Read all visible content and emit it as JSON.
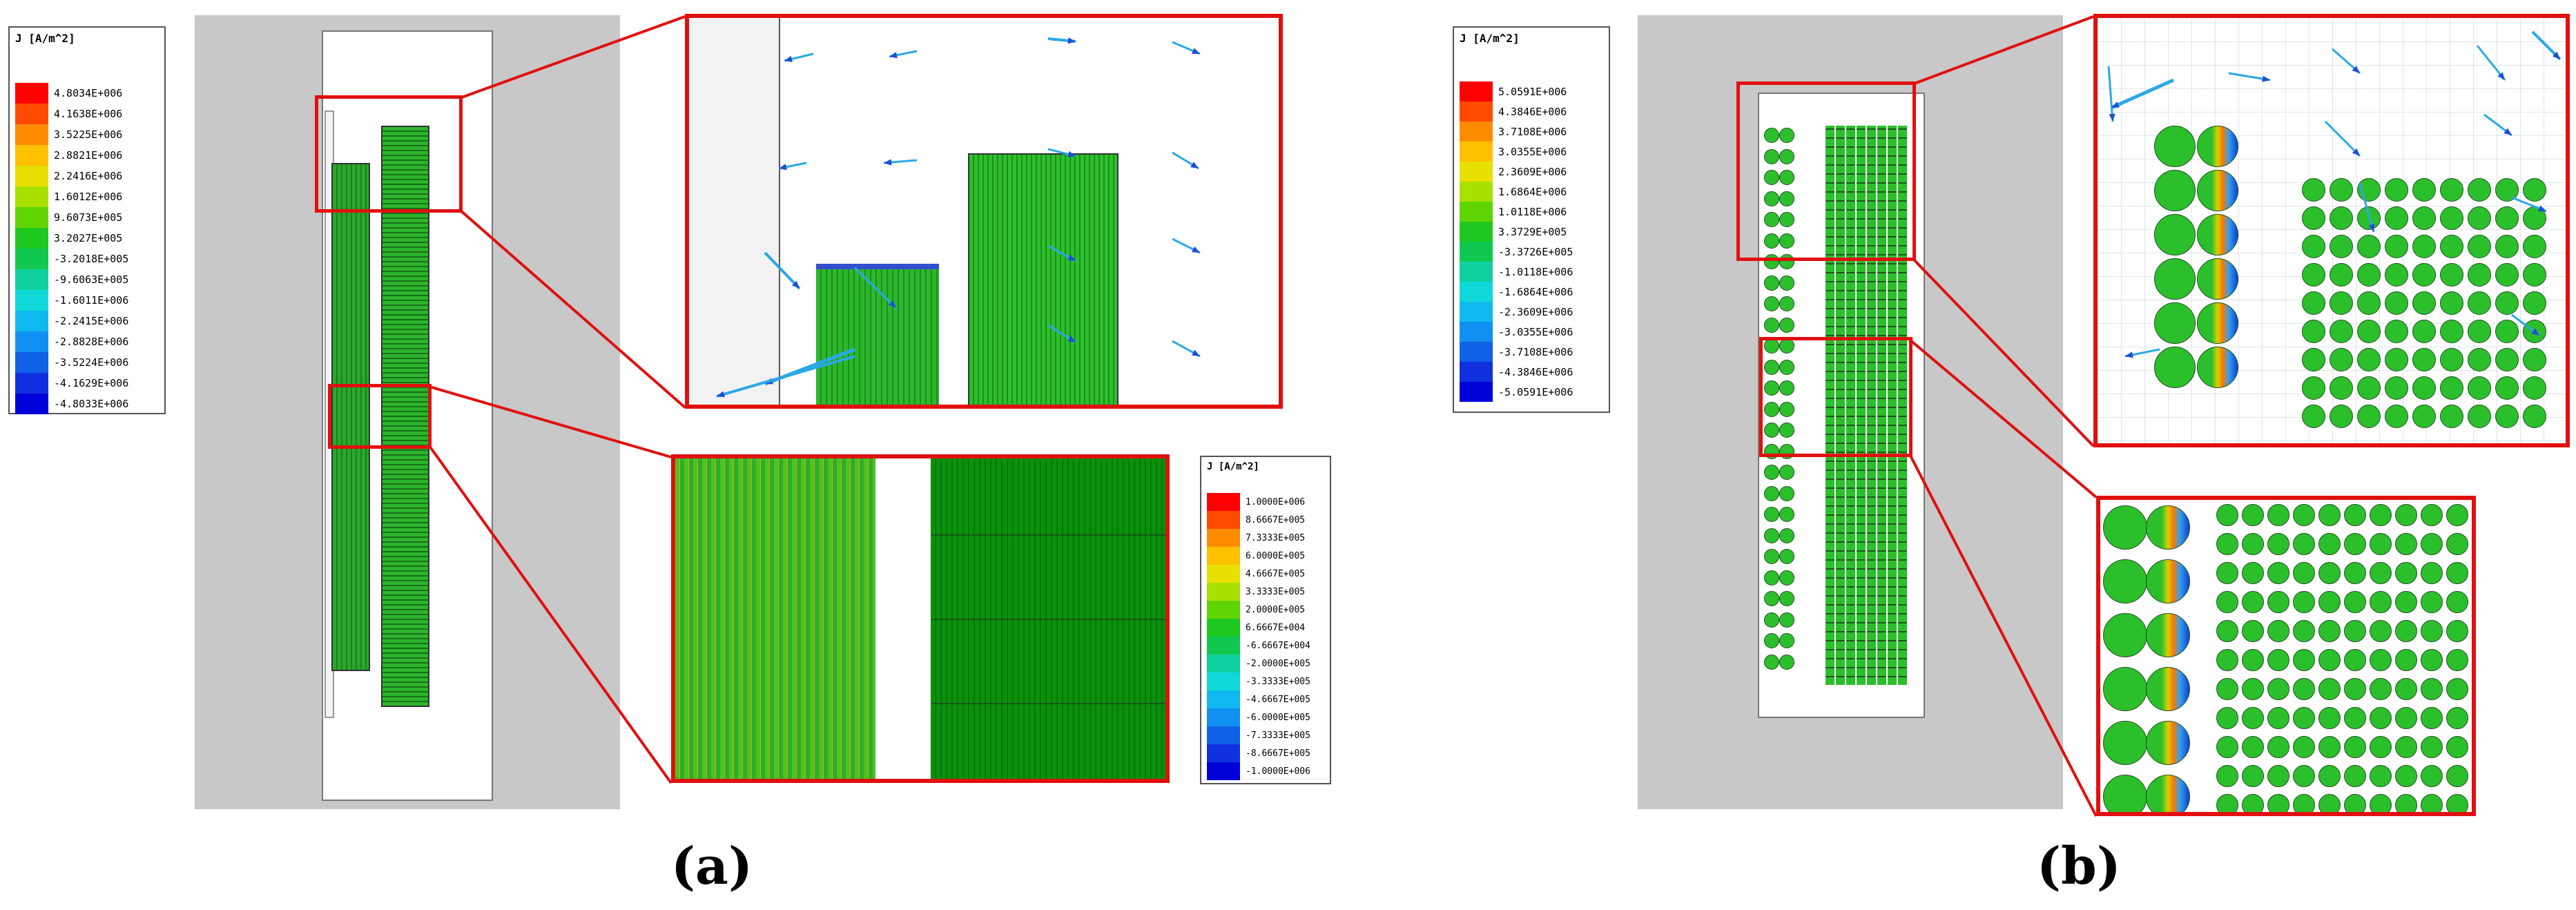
{
  "panel_a": {
    "label": "(a)",
    "legend_main": {
      "title": "J [A/m^2]",
      "values": [
        "4.8034E+006",
        "4.1638E+006",
        "3.5225E+006",
        "2.8821E+006",
        "2.2416E+006",
        "1.6012E+006",
        "9.6073E+005",
        "3.2027E+005",
        "-3.2018E+005",
        "-9.6063E+005",
        "-1.6011E+006",
        "-2.2415E+006",
        "-2.8828E+006",
        "-3.5224E+006",
        "-4.1629E+006",
        "-4.8033E+006"
      ]
    },
    "legend_zoom": {
      "title": "J [A/m^2]",
      "values": [
        "1.0000E+006",
        "8.6667E+005",
        "7.3333E+005",
        "6.0000E+005",
        "4.6667E+005",
        "3.3333E+005",
        "2.0000E+005",
        "6.6667E+004",
        "-6.6667E+004",
        "-2.0000E+005",
        "-3.3333E+005",
        "-4.6667E+005",
        "-6.0000E+005",
        "-7.3333E+005",
        "-8.6667E+005",
        "-1.0000E+006"
      ]
    }
  },
  "panel_b": {
    "label": "(b)",
    "legend_main": {
      "title": "J [A/m^2]",
      "values": [
        "5.0591E+006",
        "4.3846E+006",
        "3.7108E+006",
        "3.0355E+006",
        "2.3609E+006",
        "1.6864E+006",
        "1.0118E+006",
        "3.3729E+005",
        "-3.3726E+005",
        "-1.0118E+006",
        "-1.6864E+006",
        "-2.3609E+006",
        "-3.0355E+006",
        "-3.7108E+006",
        "-4.3846E+006",
        "-5.0591E+006"
      ]
    }
  },
  "colors": {
    "scale": [
      "#ff0000",
      "#ff4a00",
      "#ff8c00",
      "#ffc000",
      "#e8e000",
      "#a8e000",
      "#5fd400",
      "#1ec81e",
      "#10c850",
      "#10d0a0",
      "#10d8d8",
      "#10b8f0",
      "#1090f0",
      "#1060e8",
      "#1030e0",
      "#0000d8"
    ],
    "frame_red": "#e01010",
    "arrow": "#2aa8e8"
  }
}
